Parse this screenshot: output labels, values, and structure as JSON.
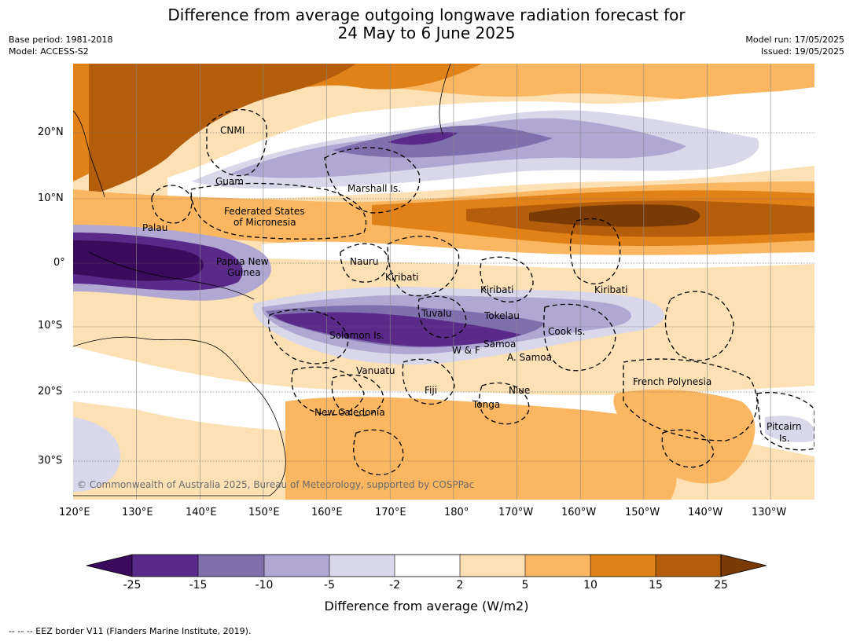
{
  "title_line1": "Difference from average outgoing longwave radiation forecast for",
  "title_line2": "24 May to 6 June 2025",
  "base_period": "Base period: 1981-2018",
  "model": "Model: ACCESS-S2",
  "model_run": "Model run: 17/05/2025",
  "issued": "Issued: 19/05/2025",
  "copyright": "© Commonwealth of Australia 2025, Bureau of Meteorology, supported by COSPPac",
  "colorbar_label": "Difference from average (W/m2)",
  "footnote": "--  --  -- EEZ border V11 (Flanders Marine Institute, 2019).",
  "lon_ticks": [
    "120°E",
    "130°E",
    "140°E",
    "150°E",
    "160°E",
    "170°E",
    "180°",
    "170°W",
    "160°W",
    "150°W",
    "140°W",
    "130°W"
  ],
  "lat_ticks": [
    "20°N",
    "10°N",
    "0°",
    "10°S",
    "20°S",
    "30°S"
  ],
  "colorbar": {
    "ticks": [
      "-25",
      "-15",
      "-10",
      "-5",
      "-2",
      "2",
      "5",
      "10",
      "15",
      "25"
    ],
    "colors": [
      "#3b0a5c",
      "#5a2a8a",
      "#7f6fad",
      "#b0a8d2",
      "#d8d8ea",
      "#ffffff",
      "#fde0b4",
      "#fbb662",
      "#e08218",
      "#b45d0a",
      "#7a3a06"
    ]
  },
  "places": [
    "CNMI",
    "Guam",
    "Marshall Is.",
    "Federated States",
    "of Micronesia",
    "Palau",
    "Nauru",
    "Papua New",
    "Guinea",
    "Kiribati",
    "Kiribati",
    "Kiribati",
    "Tuvalu",
    "Tokelau",
    "Solomon Is.",
    "Cook Is.",
    "W & F",
    "Samoa",
    "A. Samoa",
    "Vanuatu",
    "Fiji",
    "Niue",
    "French Polynesia",
    "Tonga",
    "New Caledonia",
    "Pitcairn",
    "Is."
  ]
}
